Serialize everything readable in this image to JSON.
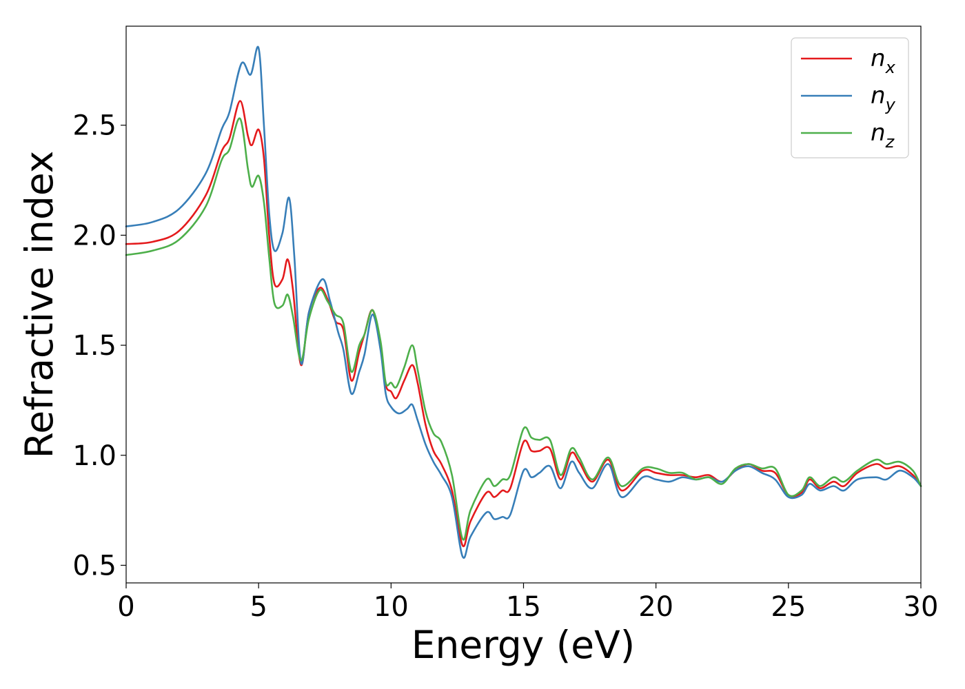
{
  "chart_data": {
    "type": "line",
    "title": "",
    "xlabel": "Energy (eV)",
    "ylabel": "Refractive index",
    "xlim": [
      0,
      30
    ],
    "ylim": [
      0.42,
      2.95
    ],
    "xticks": [
      0,
      5,
      10,
      15,
      20,
      25,
      30
    ],
    "xtick_labels": [
      "0",
      "5",
      "10",
      "15",
      "20",
      "25",
      "30"
    ],
    "yticks": [
      0.5,
      1.0,
      1.5,
      2.0,
      2.5
    ],
    "ytick_labels": [
      "0.5",
      "1.0",
      "1.5",
      "2.0",
      "2.5"
    ],
    "grid": false,
    "legend_position": "top-right",
    "series": [
      {
        "name": "n",
        "sub": "x",
        "color": "#e41a1c",
        "points": [
          [
            0,
            1.96
          ],
          [
            1,
            1.97
          ],
          [
            2,
            2.02
          ],
          [
            3,
            2.18
          ],
          [
            3.6,
            2.38
          ],
          [
            3.9,
            2.44
          ],
          [
            4.3,
            2.61
          ],
          [
            4.6,
            2.45
          ],
          [
            4.75,
            2.41
          ],
          [
            5.0,
            2.48
          ],
          [
            5.2,
            2.35
          ],
          [
            5.4,
            2.0
          ],
          [
            5.6,
            1.78
          ],
          [
            5.9,
            1.8
          ],
          [
            6.1,
            1.89
          ],
          [
            6.3,
            1.75
          ],
          [
            6.6,
            1.41
          ],
          [
            6.9,
            1.65
          ],
          [
            7.3,
            1.76
          ],
          [
            7.6,
            1.71
          ],
          [
            7.9,
            1.61
          ],
          [
            8.2,
            1.57
          ],
          [
            8.5,
            1.34
          ],
          [
            8.8,
            1.47
          ],
          [
            9.0,
            1.55
          ],
          [
            9.3,
            1.66
          ],
          [
            9.6,
            1.5
          ],
          [
            9.8,
            1.32
          ],
          [
            10.0,
            1.29
          ],
          [
            10.2,
            1.26
          ],
          [
            10.5,
            1.34
          ],
          [
            10.8,
            1.41
          ],
          [
            11.0,
            1.33
          ],
          [
            11.3,
            1.14
          ],
          [
            11.6,
            1.02
          ],
          [
            11.9,
            0.96
          ],
          [
            12.3,
            0.84
          ],
          [
            12.7,
            0.59
          ],
          [
            13.0,
            0.7
          ],
          [
            13.6,
            0.83
          ],
          [
            13.9,
            0.81
          ],
          [
            14.2,
            0.84
          ],
          [
            14.5,
            0.85
          ],
          [
            15.0,
            1.06
          ],
          [
            15.3,
            1.02
          ],
          [
            15.6,
            1.02
          ],
          [
            16.0,
            1.03
          ],
          [
            16.4,
            0.89
          ],
          [
            16.8,
            1.01
          ],
          [
            17.1,
            0.97
          ],
          [
            17.6,
            0.88
          ],
          [
            18.2,
            0.98
          ],
          [
            18.7,
            0.84
          ],
          [
            19.5,
            0.93
          ],
          [
            20.0,
            0.92
          ],
          [
            20.5,
            0.91
          ],
          [
            21.0,
            0.91
          ],
          [
            21.5,
            0.9
          ],
          [
            22.0,
            0.91
          ],
          [
            22.5,
            0.88
          ],
          [
            23.0,
            0.93
          ],
          [
            23.5,
            0.96
          ],
          [
            24.0,
            0.93
          ],
          [
            24.5,
            0.92
          ],
          [
            25.0,
            0.82
          ],
          [
            25.5,
            0.83
          ],
          [
            25.8,
            0.89
          ],
          [
            26.2,
            0.85
          ],
          [
            26.7,
            0.88
          ],
          [
            27.1,
            0.86
          ],
          [
            27.6,
            0.92
          ],
          [
            28.3,
            0.96
          ],
          [
            28.7,
            0.94
          ],
          [
            29.2,
            0.95
          ],
          [
            29.7,
            0.91
          ],
          [
            30,
            0.86
          ]
        ]
      },
      {
        "name": "n",
        "sub": "y",
        "color": "#377eb8",
        "points": [
          [
            0,
            2.04
          ],
          [
            1,
            2.06
          ],
          [
            2,
            2.12
          ],
          [
            3,
            2.28
          ],
          [
            3.6,
            2.48
          ],
          [
            3.9,
            2.56
          ],
          [
            4.35,
            2.78
          ],
          [
            4.7,
            2.73
          ],
          [
            5.0,
            2.85
          ],
          [
            5.2,
            2.5
          ],
          [
            5.4,
            2.1
          ],
          [
            5.6,
            1.93
          ],
          [
            5.9,
            2.01
          ],
          [
            6.15,
            2.17
          ],
          [
            6.35,
            1.9
          ],
          [
            6.6,
            1.42
          ],
          [
            6.9,
            1.65
          ],
          [
            7.4,
            1.8
          ],
          [
            7.7,
            1.7
          ],
          [
            8.0,
            1.56
          ],
          [
            8.2,
            1.48
          ],
          [
            8.5,
            1.28
          ],
          [
            8.8,
            1.38
          ],
          [
            9.0,
            1.46
          ],
          [
            9.3,
            1.64
          ],
          [
            9.6,
            1.48
          ],
          [
            9.8,
            1.28
          ],
          [
            10.0,
            1.22
          ],
          [
            10.3,
            1.19
          ],
          [
            10.6,
            1.21
          ],
          [
            10.8,
            1.23
          ],
          [
            11.0,
            1.16
          ],
          [
            11.3,
            1.05
          ],
          [
            11.6,
            0.97
          ],
          [
            11.9,
            0.91
          ],
          [
            12.3,
            0.81
          ],
          [
            12.7,
            0.54
          ],
          [
            13.0,
            0.63
          ],
          [
            13.6,
            0.74
          ],
          [
            13.9,
            0.71
          ],
          [
            14.2,
            0.72
          ],
          [
            14.5,
            0.73
          ],
          [
            15.0,
            0.93
          ],
          [
            15.3,
            0.9
          ],
          [
            15.6,
            0.92
          ],
          [
            16.0,
            0.95
          ],
          [
            16.4,
            0.85
          ],
          [
            16.8,
            0.97
          ],
          [
            17.1,
            0.92
          ],
          [
            17.6,
            0.85
          ],
          [
            18.2,
            0.96
          ],
          [
            18.7,
            0.81
          ],
          [
            19.5,
            0.9
          ],
          [
            20.0,
            0.89
          ],
          [
            20.5,
            0.88
          ],
          [
            21.0,
            0.9
          ],
          [
            21.5,
            0.89
          ],
          [
            22.0,
            0.9
          ],
          [
            22.5,
            0.88
          ],
          [
            23.0,
            0.93
          ],
          [
            23.5,
            0.95
          ],
          [
            24.0,
            0.92
          ],
          [
            24.5,
            0.89
          ],
          [
            25.0,
            0.81
          ],
          [
            25.5,
            0.82
          ],
          [
            25.8,
            0.87
          ],
          [
            26.2,
            0.84
          ],
          [
            26.7,
            0.86
          ],
          [
            27.1,
            0.84
          ],
          [
            27.6,
            0.89
          ],
          [
            28.3,
            0.9
          ],
          [
            28.7,
            0.89
          ],
          [
            29.2,
            0.93
          ],
          [
            29.7,
            0.9
          ],
          [
            30,
            0.86
          ]
        ]
      },
      {
        "name": "n",
        "sub": "z",
        "color": "#4daf4a",
        "points": [
          [
            0,
            1.91
          ],
          [
            1,
            1.93
          ],
          [
            2,
            1.98
          ],
          [
            3,
            2.13
          ],
          [
            3.6,
            2.34
          ],
          [
            3.9,
            2.39
          ],
          [
            4.3,
            2.53
          ],
          [
            4.6,
            2.3
          ],
          [
            4.75,
            2.22
          ],
          [
            5.0,
            2.27
          ],
          [
            5.2,
            2.15
          ],
          [
            5.4,
            1.9
          ],
          [
            5.6,
            1.69
          ],
          [
            5.9,
            1.68
          ],
          [
            6.1,
            1.73
          ],
          [
            6.3,
            1.63
          ],
          [
            6.6,
            1.43
          ],
          [
            6.9,
            1.62
          ],
          [
            7.3,
            1.75
          ],
          [
            7.6,
            1.7
          ],
          [
            7.9,
            1.64
          ],
          [
            8.2,
            1.6
          ],
          [
            8.5,
            1.38
          ],
          [
            8.8,
            1.5
          ],
          [
            9.0,
            1.55
          ],
          [
            9.3,
            1.66
          ],
          [
            9.6,
            1.52
          ],
          [
            9.8,
            1.33
          ],
          [
            10.0,
            1.33
          ],
          [
            10.2,
            1.31
          ],
          [
            10.5,
            1.4
          ],
          [
            10.8,
            1.5
          ],
          [
            11.0,
            1.39
          ],
          [
            11.3,
            1.2
          ],
          [
            11.6,
            1.1
          ],
          [
            11.9,
            1.06
          ],
          [
            12.3,
            0.91
          ],
          [
            12.7,
            0.62
          ],
          [
            13.0,
            0.75
          ],
          [
            13.6,
            0.89
          ],
          [
            13.9,
            0.86
          ],
          [
            14.2,
            0.89
          ],
          [
            14.5,
            0.91
          ],
          [
            15.0,
            1.12
          ],
          [
            15.3,
            1.08
          ],
          [
            15.6,
            1.07
          ],
          [
            16.0,
            1.07
          ],
          [
            16.4,
            0.91
          ],
          [
            16.8,
            1.03
          ],
          [
            17.1,
            0.99
          ],
          [
            17.6,
            0.89
          ],
          [
            18.2,
            0.99
          ],
          [
            18.7,
            0.86
          ],
          [
            19.5,
            0.94
          ],
          [
            20.0,
            0.94
          ],
          [
            20.5,
            0.92
          ],
          [
            21.0,
            0.92
          ],
          [
            21.5,
            0.89
          ],
          [
            22.0,
            0.9
          ],
          [
            22.5,
            0.87
          ],
          [
            23.0,
            0.94
          ],
          [
            23.5,
            0.96
          ],
          [
            24.0,
            0.94
          ],
          [
            24.5,
            0.94
          ],
          [
            25.0,
            0.82
          ],
          [
            25.5,
            0.84
          ],
          [
            25.8,
            0.9
          ],
          [
            26.2,
            0.86
          ],
          [
            26.7,
            0.9
          ],
          [
            27.1,
            0.88
          ],
          [
            27.6,
            0.93
          ],
          [
            28.3,
            0.98
          ],
          [
            28.7,
            0.96
          ],
          [
            29.2,
            0.97
          ],
          [
            29.7,
            0.93
          ],
          [
            30,
            0.86
          ]
        ]
      }
    ]
  }
}
